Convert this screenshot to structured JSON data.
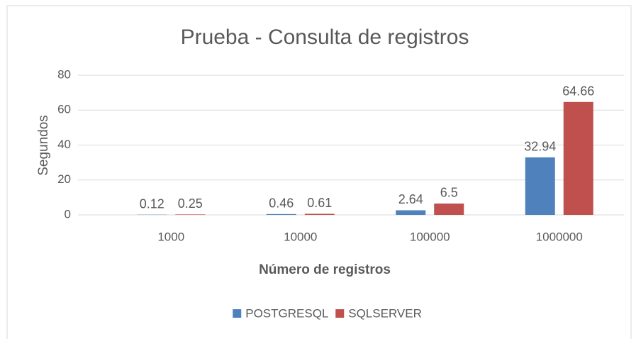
{
  "chart_data": {
    "type": "bar",
    "title": "Prueba - Consulta de registros",
    "x_label": "Número de registros",
    "y_label": "Segundos",
    "categories": [
      "1000",
      "10000",
      "100000",
      "1000000"
    ],
    "series": [
      {
        "name": "POSTGRESQL",
        "color": "#4f81bd",
        "values": [
          0.12,
          0.46,
          2.64,
          32.94
        ]
      },
      {
        "name": "SQLSERVER",
        "color": "#c0504d",
        "values": [
          0.25,
          0.61,
          6.5,
          64.66
        ]
      }
    ],
    "ylim": [
      0,
      80
    ],
    "yticks": [
      0,
      20,
      40,
      60,
      80
    ],
    "grid": true,
    "legend": "bottom"
  }
}
